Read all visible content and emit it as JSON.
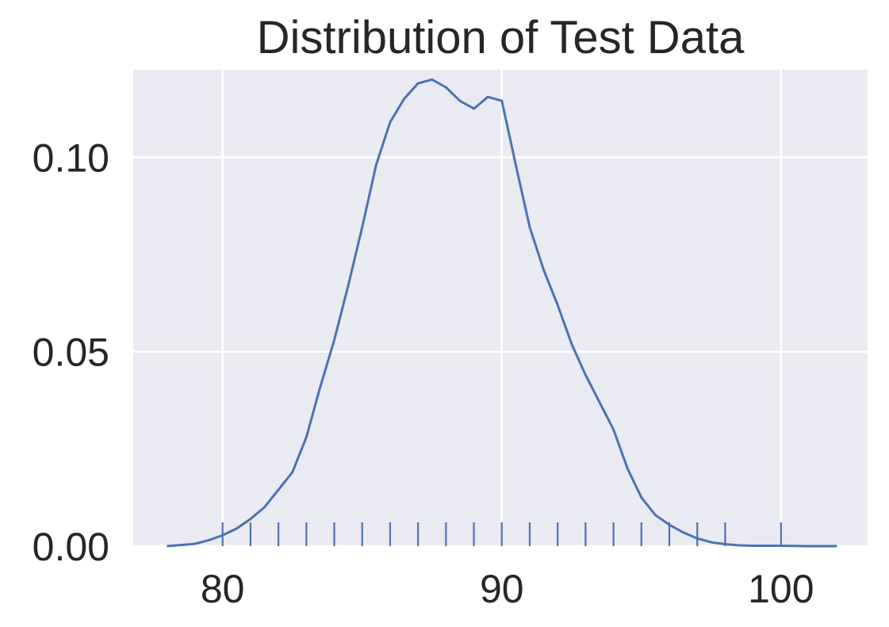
{
  "chart_data": {
    "type": "line",
    "title": "Distribution of Test Data",
    "xlabel": "",
    "ylabel": "",
    "xlim": [
      76.8,
      103.1
    ],
    "ylim": [
      0,
      0.1225
    ],
    "x_ticks": [
      80,
      90,
      100
    ],
    "x_tick_labels": [
      "80",
      "90",
      "100"
    ],
    "y_ticks": [
      0.0,
      0.05,
      0.1
    ],
    "y_tick_labels": [
      "0.00",
      "0.05",
      "0.10"
    ],
    "grid": true,
    "legend": "none",
    "colors": {
      "background": "#eaeaf2",
      "grid": "#ffffff",
      "line": "#4c72b0",
      "text": "#262626"
    },
    "series": [
      {
        "kind": "kde",
        "x": [
          78,
          79,
          79.5,
          80,
          80.5,
          81,
          81.5,
          82,
          82.5,
          83,
          83.5,
          84,
          84.5,
          85,
          85.5,
          86,
          86.5,
          87,
          87.5,
          88,
          88.5,
          89,
          89.5,
          90,
          90.5,
          91,
          91.5,
          92,
          92.5,
          93,
          93.5,
          94,
          94.5,
          95,
          95.5,
          96,
          96.5,
          97,
          97.5,
          98,
          98.5,
          99,
          100,
          101,
          102
        ],
        "y": [
          0.0,
          0.0006,
          0.0015,
          0.0028,
          0.0045,
          0.007,
          0.01,
          0.0145,
          0.019,
          0.028,
          0.041,
          0.053,
          0.067,
          0.082,
          0.098,
          0.109,
          0.115,
          0.119,
          0.12,
          0.118,
          0.1145,
          0.1125,
          0.1155,
          0.1145,
          0.098,
          0.082,
          0.071,
          0.062,
          0.052,
          0.044,
          0.037,
          0.03,
          0.02,
          0.0125,
          0.008,
          0.0055,
          0.0035,
          0.002,
          0.001,
          0.0005,
          0.0002,
          0.0001,
          0.0001,
          0.0,
          0.0
        ]
      }
    ],
    "rug": [
      80,
      81,
      82,
      83,
      84,
      85,
      86,
      87,
      88,
      89,
      90,
      91,
      92,
      93,
      94,
      95,
      96,
      97,
      98,
      100
    ]
  }
}
